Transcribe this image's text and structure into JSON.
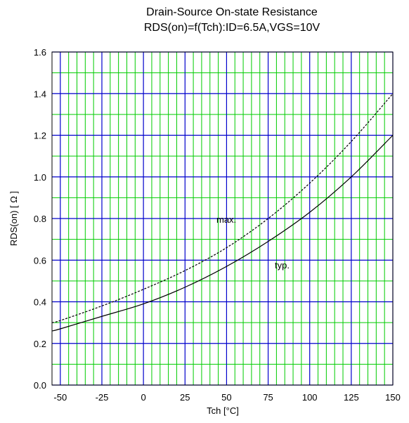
{
  "chart_data": {
    "type": "line",
    "title": "Drain-Source On-state Resistance",
    "subtitle": "RDS(on)=f(Tch):ID=6.5A,VGS=10V",
    "xlabel": "Tch [°C]",
    "ylabel": "RDS(on) [ Ω ]",
    "xlim": [
      -55,
      150
    ],
    "ylim": [
      0,
      1.6
    ],
    "xticks": [
      -50,
      -25,
      0,
      25,
      50,
      75,
      100,
      125,
      150
    ],
    "yticks": [
      0.0,
      0.2,
      0.4,
      0.6,
      0.8,
      1.0,
      1.2,
      1.4,
      1.6
    ],
    "xtick_labels": [
      "-50",
      "-25",
      "0",
      "25",
      "50",
      "75",
      "100",
      "125",
      "150"
    ],
    "ytick_labels": [
      "0.0",
      "0.2",
      "0.4",
      "0.6",
      "0.8",
      "1.0",
      "1.2",
      "1.4",
      "1.6"
    ],
    "grid": true,
    "minor_grid_color": "#00cc00",
    "major_grid_color": "#0000cc",
    "series": [
      {
        "name": "typ.",
        "style": "solid",
        "x": [
          -55,
          -50,
          -25,
          0,
          25,
          50,
          75,
          100,
          125,
          150
        ],
        "y": [
          0.26,
          0.27,
          0.33,
          0.39,
          0.47,
          0.57,
          0.69,
          0.83,
          1.0,
          1.2
        ]
      },
      {
        "name": "max.",
        "style": "dashed",
        "x": [
          -55,
          -50,
          -25,
          0,
          25,
          50,
          75,
          100,
          125,
          150
        ],
        "y": [
          0.3,
          0.31,
          0.38,
          0.46,
          0.55,
          0.66,
          0.8,
          0.97,
          1.17,
          1.4
        ]
      }
    ]
  }
}
